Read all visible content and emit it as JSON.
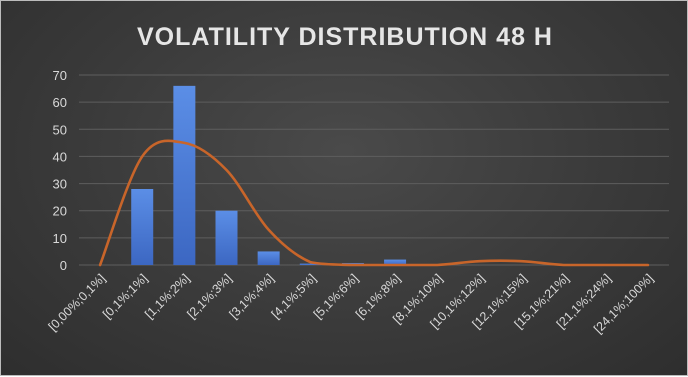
{
  "chart_data": {
    "type": "bar",
    "title": "VOLATILITY DISTRIBUTION 48 H",
    "categories": [
      "[0,00%;0,1%]",
      "[0,1%;1%]",
      "[1,1%;2%]",
      "[2,1%;3%]",
      "[3,1%;4%]",
      "[4,1%;5%]",
      "[5,1%;6%]",
      "[6,1%;8%]",
      "[8,1%;10%]",
      "[10,1%;12%]",
      "[12,1%;15%]",
      "[15,1%;21%]",
      "[21,1%;24%]",
      "[24,1%;100%]"
    ],
    "values": [
      0,
      28,
      66,
      20,
      5,
      0.5,
      0.7,
      2,
      0,
      0,
      0,
      0,
      0,
      0
    ],
    "trend_curve": {
      "type": "smoothed-line",
      "values": [
        0,
        40,
        45,
        35,
        13,
        1,
        0,
        0,
        0,
        1.4,
        1.4,
        0,
        0,
        0
      ]
    },
    "yticks": [
      0,
      10,
      20,
      30,
      40,
      50,
      60,
      70
    ],
    "ylim": [
      0,
      70
    ],
    "xlabel": "",
    "ylabel": "",
    "grid": true,
    "legend": "none",
    "colors": {
      "bar": "#4a7bd6",
      "curve": "#c8652a",
      "grid": "#5e5e5e",
      "text": "#d9d9d9",
      "background": "#3a3a3a"
    }
  }
}
